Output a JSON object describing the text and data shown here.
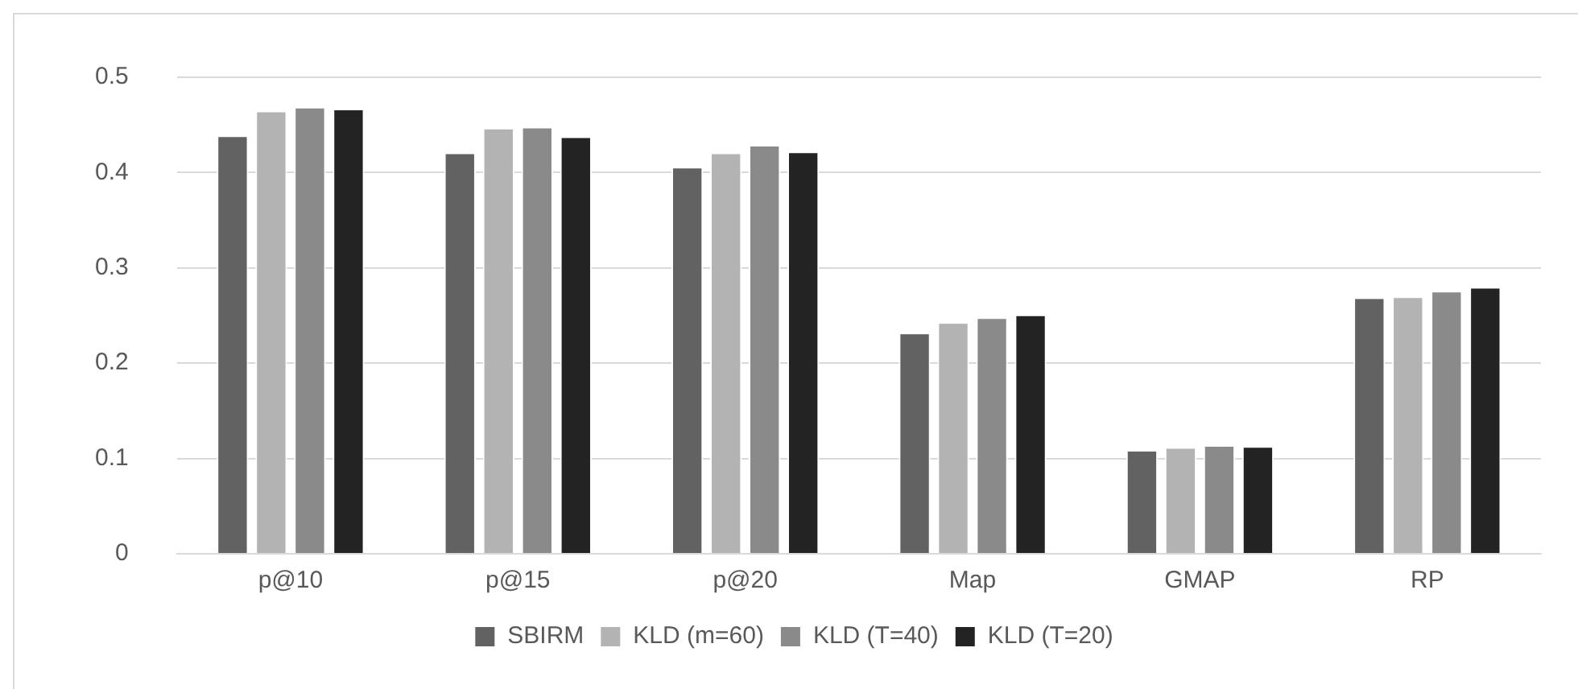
{
  "chart_data": {
    "type": "bar",
    "categories": [
      "p@10",
      "p@15",
      "p@20",
      "Map",
      "GMAP",
      "RP"
    ],
    "series": [
      {
        "name": "SBIRM",
        "color": "#626262",
        "values": [
          0.439,
          0.421,
          0.406,
          0.232,
          0.109,
          0.269
        ]
      },
      {
        "name": "KLD (m=60)",
        "color": "#b3b3b3",
        "values": [
          0.465,
          0.447,
          0.421,
          0.243,
          0.112,
          0.27
        ]
      },
      {
        "name": "KLD (T=40)",
        "color": "#8a8a8a",
        "values": [
          0.469,
          0.448,
          0.429,
          0.248,
          0.114,
          0.276
        ]
      },
      {
        "name": "KLD (T=20)",
        "color": "#232323",
        "values": [
          0.467,
          0.438,
          0.422,
          0.251,
          0.113,
          0.28
        ]
      }
    ],
    "ylim": [
      0,
      0.5
    ],
    "yticks": [
      0,
      0.1,
      0.2,
      0.3,
      0.4,
      0.5
    ],
    "grid": "y",
    "legend": "bottom"
  }
}
